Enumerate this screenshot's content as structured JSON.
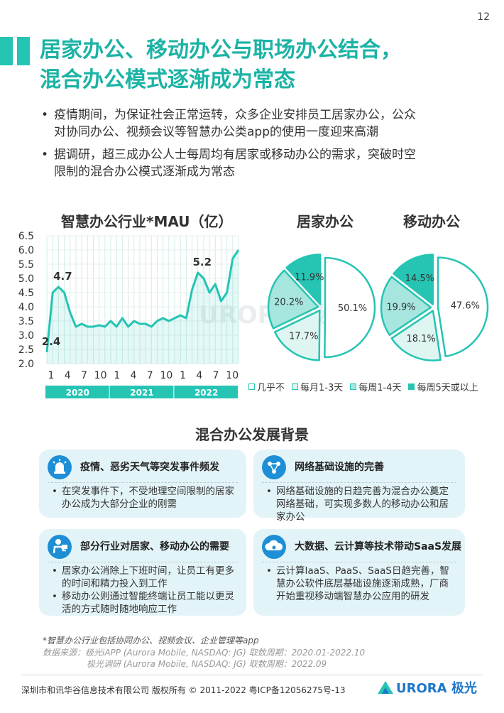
{
  "page_number": "12",
  "title_line1": "居家办公、移动办公与职场办公结合，",
  "title_line2": "混合办公模式逐渐成为常态",
  "bullets": [
    {
      "line1": "疫情期间，为保证社会正常运转，众多企业安排员工居家办公，公众",
      "line2": "对协同办公、视频会议等智慧办公类app的使用一度迎来高潮"
    },
    {
      "line1": "据调研，超三成办公人士每周均有居家或移动办公的需求，突破时空",
      "line2": "限制的混合办公模式逐渐成为常态"
    }
  ],
  "chart_data": [
    {
      "type": "area",
      "title": "智慧办公行业*MAU（亿）",
      "ylim": [
        2.0,
        6.5
      ],
      "yticks": [
        "6.5",
        "6.0",
        "5.5",
        "5.0",
        "4.5",
        "4.0",
        "3.5",
        "3.0",
        "2.5",
        "2.0"
      ],
      "xticks": [
        "1",
        "4",
        "7",
        "10",
        "1",
        "4",
        "7",
        "10",
        "1",
        "4",
        "7",
        "10"
      ],
      "years": [
        "2020",
        "2021",
        "2022"
      ],
      "x": [
        "2020-01",
        "2020-02",
        "2020-03",
        "2020-04",
        "2020-05",
        "2020-06",
        "2020-07",
        "2020-08",
        "2020-09",
        "2020-10",
        "2020-11",
        "2020-12",
        "2021-01",
        "2021-02",
        "2021-03",
        "2021-04",
        "2021-05",
        "2021-06",
        "2021-07",
        "2021-08",
        "2021-09",
        "2021-10",
        "2021-11",
        "2021-12",
        "2022-01",
        "2022-02",
        "2022-03",
        "2022-04",
        "2022-05",
        "2022-06",
        "2022-07",
        "2022-08",
        "2022-09",
        "2022-10"
      ],
      "values": [
        2.4,
        4.5,
        4.7,
        4.5,
        3.8,
        3.3,
        3.4,
        3.3,
        3.3,
        3.35,
        3.3,
        3.5,
        3.3,
        3.6,
        3.3,
        3.5,
        3.4,
        3.4,
        3.3,
        3.5,
        3.6,
        3.5,
        3.6,
        3.7,
        3.6,
        4.6,
        5.2,
        5.0,
        4.5,
        4.8,
        4.2,
        4.5,
        5.7,
        6.0
      ],
      "data_labels": [
        {
          "label": "2.4",
          "x": "2020-01"
        },
        {
          "label": "4.7",
          "x": "2020-03"
        },
        {
          "label": "5.2",
          "x": "2022-03"
        }
      ],
      "grid": true,
      "color": "#25c4b3"
    },
    {
      "type": "pie",
      "title": "居家办公",
      "slices": [
        {
          "name": "几乎不",
          "value": 50.1,
          "label": "50.1%"
        },
        {
          "name": "每月1-3天",
          "value": 17.7,
          "label": "17.7%"
        },
        {
          "name": "每周1-4天",
          "value": 20.2,
          "label": "20.2%"
        },
        {
          "name": "每周5天或以上",
          "value": 11.9,
          "label": "11.9%"
        }
      ]
    },
    {
      "type": "pie",
      "title": "移动办公",
      "slices": [
        {
          "name": "几乎不",
          "value": 47.6,
          "label": "47.6%"
        },
        {
          "name": "每月1-3天",
          "value": 18.1,
          "label": "18.1%"
        },
        {
          "name": "每周1-4天",
          "value": 19.9,
          "label": "19.9%"
        },
        {
          "name": "每周5天或以上",
          "value": 14.5,
          "label": "14.5%"
        }
      ]
    }
  ],
  "legend": [
    {
      "label": "几乎不",
      "color": "#ffffff"
    },
    {
      "label": "每月1-3天",
      "color": "#def5f2"
    },
    {
      "label": "每周1-4天",
      "color": "#a7e6de"
    },
    {
      "label": "每周5天或以上",
      "color": "#25c4b3"
    }
  ],
  "watermark": "URORA 极光",
  "section_title": "混合办公发展背景",
  "cards": [
    {
      "icon": "alarm-icon",
      "head": "疫情、恶劣天气等突发事件频发",
      "items": [
        "在突发事件下，不受地理空间限制的居家办公成为大部分企业的刚需"
      ]
    },
    {
      "icon": "network-icon",
      "head": "网络基础设施的完善",
      "items": [
        "网络基础设施的日趋完善为混合办公奠定网络基础，可实现多数人的移动办公和居家办公"
      ]
    },
    {
      "icon": "worker-icon",
      "head": "部分行业对居家、移动办公的需要",
      "items": [
        "居家办公消除上下班时间，让员工有更多的时间和精力投入到工作",
        "移动办公则通过智能终端让员工能以更灵活的方式随时随地响应工作"
      ]
    },
    {
      "icon": "cloud-icon",
      "head": "大数据、云计算等技术带动SaaS发展",
      "items": [
        "云计算IaaS、PaaS、SaaS日趋完善，智慧办公软件底层基础设施逐渐成熟，厂商开始重视移动端智慧办公应用的研发"
      ]
    }
  ],
  "note": "*智慧办公行业包括协同办公、视频会议、企业管理等app",
  "source_line1": "数据来源：极光iAPP (Aurora Mobile, NASDAQ: JG) 取数周期：2020.01-2022.10",
  "source_line2": "极光调研 (Aurora Mobile, NASDAQ: JG) 取数周期：2022.09",
  "footer": "深圳市和讯华谷信息技术有限公司 版权所有 © 2011-2022 粤ICP备12056275号-13",
  "logo_text": "URORA 极光"
}
